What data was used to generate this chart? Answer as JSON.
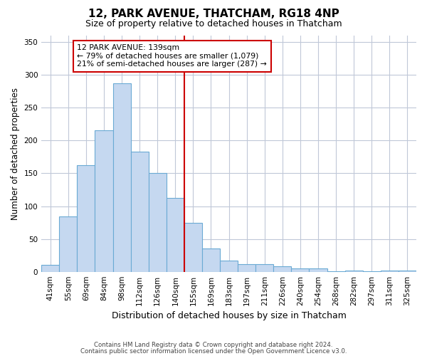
{
  "title": "12, PARK AVENUE, THATCHAM, RG18 4NP",
  "subtitle": "Size of property relative to detached houses in Thatcham",
  "xlabel": "Distribution of detached houses by size in Thatcham",
  "ylabel": "Number of detached properties",
  "bar_labels": [
    "41sqm",
    "55sqm",
    "69sqm",
    "84sqm",
    "98sqm",
    "112sqm",
    "126sqm",
    "140sqm",
    "155sqm",
    "169sqm",
    "183sqm",
    "197sqm",
    "211sqm",
    "226sqm",
    "240sqm",
    "254sqm",
    "268sqm",
    "282sqm",
    "297sqm",
    "311sqm",
    "325sqm"
  ],
  "bar_values": [
    10,
    84,
    163,
    216,
    287,
    183,
    150,
    113,
    75,
    35,
    17,
    12,
    12,
    8,
    5,
    5,
    1,
    2,
    1,
    2,
    2
  ],
  "bar_color": "#c5d8f0",
  "bar_edge_color": "#6aaad4",
  "vline_color": "#cc0000",
  "ylim": [
    0,
    360
  ],
  "yticks": [
    0,
    50,
    100,
    150,
    200,
    250,
    300,
    350
  ],
  "annotation_title": "12 PARK AVENUE: 139sqm",
  "annotation_line1": "← 79% of detached houses are smaller (1,079)",
  "annotation_line2": "21% of semi-detached houses are larger (287) →",
  "annotation_box_color": "#ffffff",
  "annotation_box_edge_color": "#cc0000",
  "footer1": "Contains HM Land Registry data © Crown copyright and database right 2024.",
  "footer2": "Contains public sector information licensed under the Open Government Licence v3.0.",
  "background_color": "#ffffff",
  "grid_color": "#c0c8d8"
}
